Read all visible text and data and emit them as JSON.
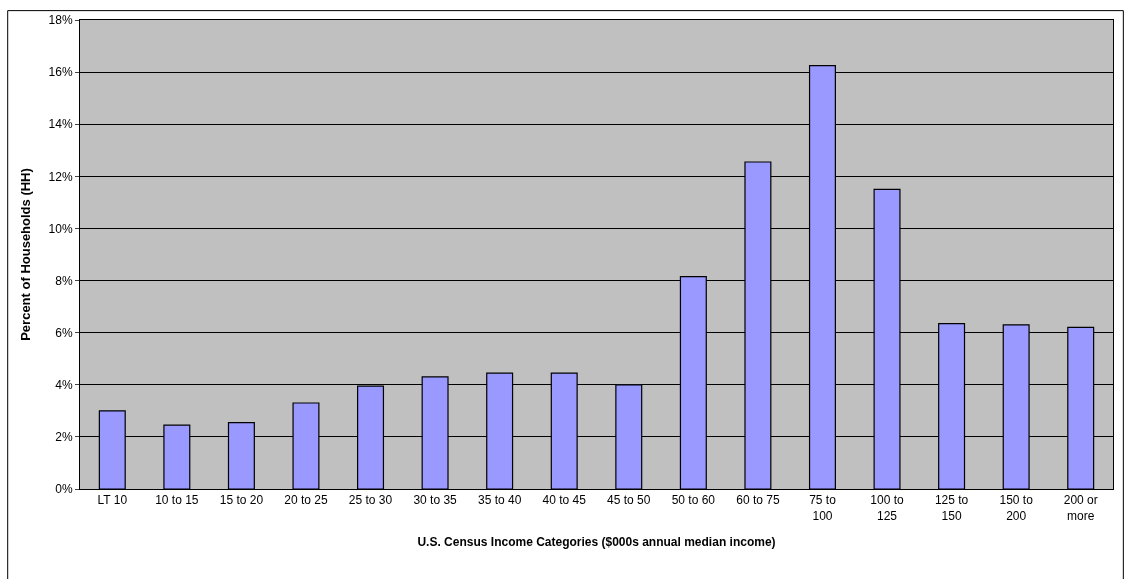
{
  "chart_data": {
    "type": "bar",
    "xlabel": "U.S. Census Income Categories ($000s annual median income)",
    "ylabel": "Percent of Households (HH)",
    "categories": [
      "LT 10",
      "10 to 15",
      "15 to 20",
      "20 to 25",
      "25 to 30",
      "30 to 35",
      "35 to 40",
      "40 to 45",
      "45 to 50",
      "50 to 60",
      "60 to 75",
      "75 to 100",
      "100 to 125",
      "125 to 150",
      "150 to 200",
      "200 or more"
    ],
    "values": [
      3.0,
      2.45,
      2.55,
      3.3,
      3.95,
      4.3,
      4.45,
      4.45,
      4.0,
      8.15,
      12.55,
      16.25,
      11.5,
      6.35,
      6.3,
      6.2
    ],
    "color": "#9999ff",
    "ylim": [
      0,
      18
    ],
    "yticks": [
      {
        "value": 0,
        "label": "0%"
      },
      {
        "value": 2,
        "label": "2%"
      },
      {
        "value": 4,
        "label": "4%"
      },
      {
        "value": 6,
        "label": "6%"
      },
      {
        "value": 8,
        "label": "8%"
      },
      {
        "value": 10,
        "label": "10%"
      },
      {
        "value": 12,
        "label": "12%"
      },
      {
        "value": 14,
        "label": "14%"
      },
      {
        "value": 16,
        "label": "16%"
      },
      {
        "value": 18,
        "label": "18%"
      }
    ],
    "grid": "y",
    "legend": false
  }
}
